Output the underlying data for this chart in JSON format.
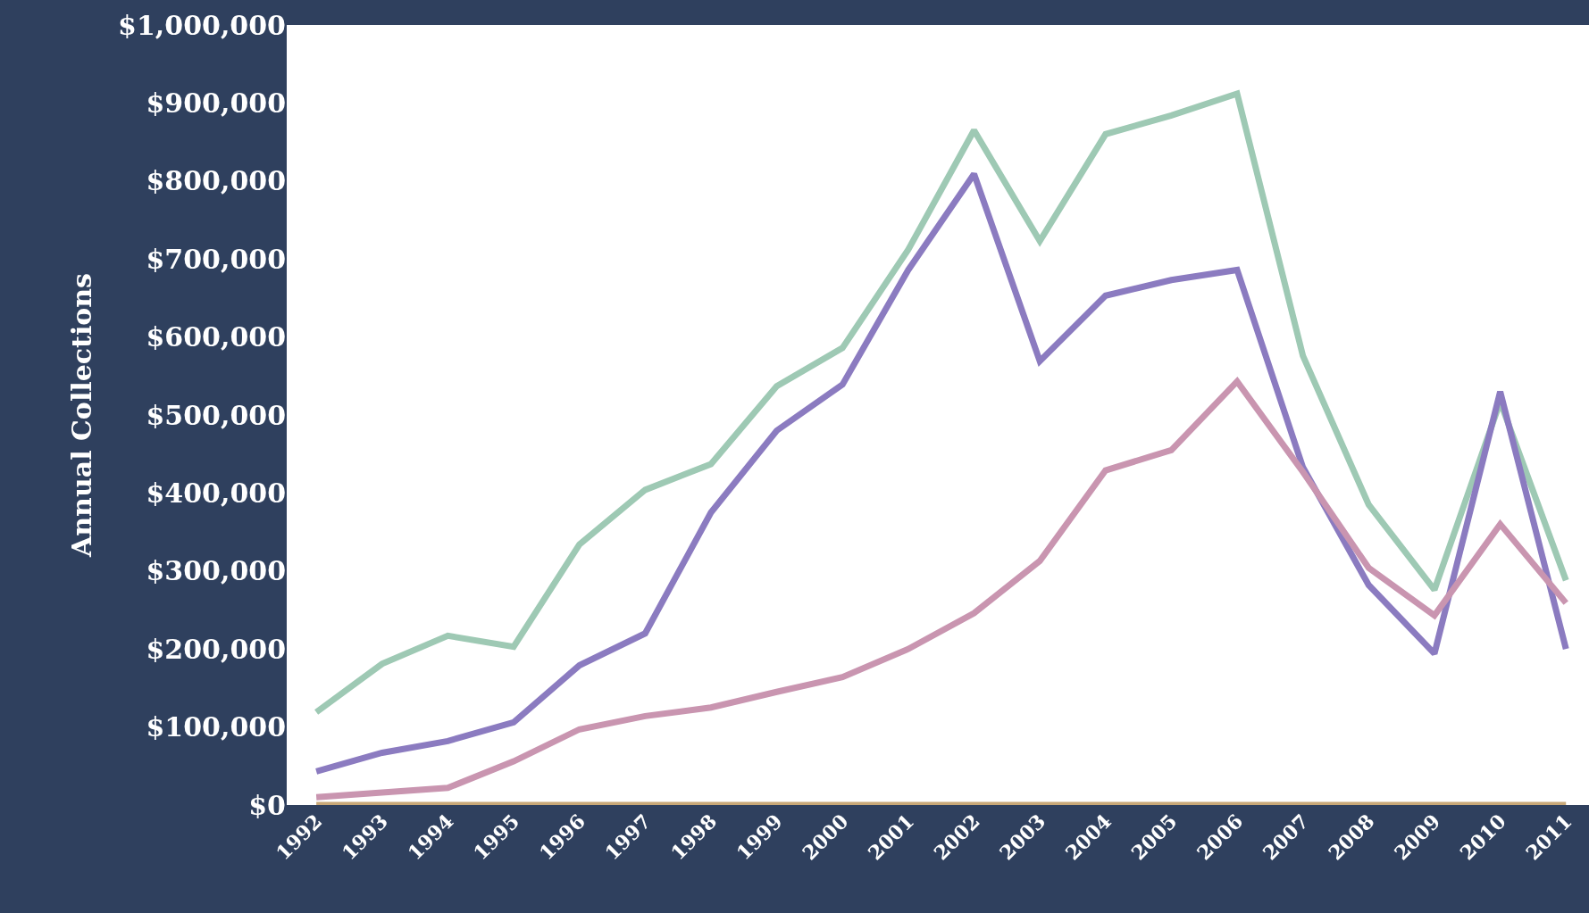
{
  "chart_data": {
    "type": "line",
    "ylabel": "Annual Collections",
    "categories": [
      "1992",
      "1993",
      "1994",
      "1995",
      "1996",
      "1997",
      "1998",
      "1999",
      "2000",
      "2001",
      "2002",
      "2003",
      "2004",
      "2005",
      "2006",
      "2007",
      "2008",
      "2009",
      "2010",
      "2011"
    ],
    "series": [
      {
        "color": "#9ec9b4",
        "values": [
          119000,
          181000,
          217000,
          203000,
          334000,
          404000,
          437000,
          537000,
          586000,
          712000,
          865000,
          723000,
          860000,
          884000,
          912000,
          576000,
          385000,
          276000,
          517000,
          288000
        ]
      },
      {
        "color": "#8b7bc0",
        "values": [
          43000,
          67000,
          82000,
          106000,
          179000,
          220000,
          375000,
          480000,
          539000,
          686000,
          809000,
          569000,
          653000,
          673000,
          686000,
          433000,
          282000,
          194000,
          530000,
          200000
        ]
      },
      {
        "color": "#c995b0",
        "values": [
          10000,
          16000,
          22000,
          56000,
          97000,
          114000,
          125000,
          145000,
          164000,
          200000,
          246000,
          313000,
          429000,
          455000,
          543000,
          427000,
          304000,
          243000,
          360000,
          259000
        ]
      },
      {
        "color": "#c8a878",
        "values": [
          0,
          0,
          0,
          0,
          0,
          0,
          0,
          0,
          0,
          0,
          0,
          0,
          0,
          0,
          0,
          0,
          0,
          0,
          0,
          0
        ]
      }
    ],
    "ylim": [
      0,
      1000000
    ],
    "yticks": [
      {
        "value": 0,
        "label": "$0"
      },
      {
        "value": 100000,
        "label": "$100,000"
      },
      {
        "value": 200000,
        "label": "$200,000"
      },
      {
        "value": 300000,
        "label": "$300,000"
      },
      {
        "value": 400000,
        "label": "$400,000"
      },
      {
        "value": 500000,
        "label": "$500,000"
      },
      {
        "value": 600000,
        "label": "$600,000"
      },
      {
        "value": 700000,
        "label": "$700,000"
      },
      {
        "value": 800000,
        "label": "$800,000"
      },
      {
        "value": 900000,
        "label": "$900,000"
      },
      {
        "value": 1000000,
        "label": "$1,000,000"
      }
    ],
    "marker": "none",
    "line_style": "solid"
  }
}
